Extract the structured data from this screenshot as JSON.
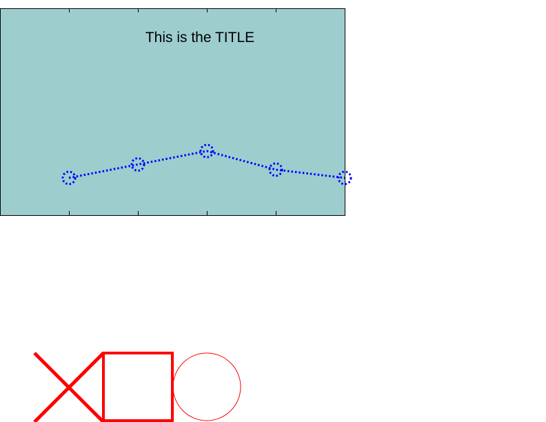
{
  "chart_data": {
    "type": "line",
    "title": "This is the TITLE",
    "xlabel": "",
    "ylabel": "",
    "x": [
      1,
      2,
      3,
      4,
      5
    ],
    "xlim": [
      0,
      5
    ],
    "ylim": [
      0,
      1
    ],
    "grid": false,
    "x_tick_values": [
      1,
      2,
      3,
      4
    ],
    "series": [
      {
        "values": [
          0.18,
          0.245,
          0.31,
          0.22,
          0.18
        ],
        "line_style": "dotted",
        "marker": "circle",
        "color": "#0000ff"
      }
    ],
    "axes_background": "#9ecdce"
  },
  "shapes": {
    "color": "#ff0000",
    "items": [
      "x-mark",
      "square",
      "circle"
    ]
  }
}
